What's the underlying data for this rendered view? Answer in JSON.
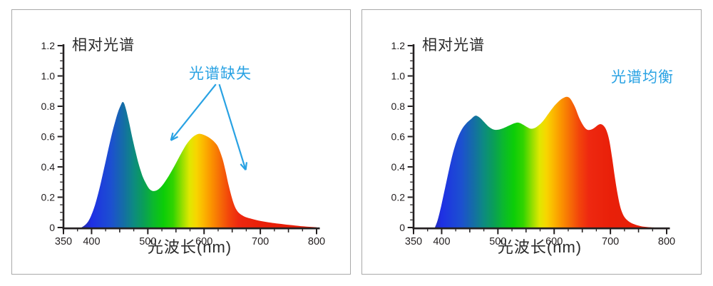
{
  "page": {
    "background": "#ffffff",
    "panel_border": "#a9a9a9",
    "axis_color": "#231f20",
    "text_color": "#2b2b2b",
    "annotation_color": "#29a2e3"
  },
  "spectrum_gradient": [
    {
      "nm": 380,
      "color": "#262a9e"
    },
    {
      "nm": 400,
      "color": "#1e30e4"
    },
    {
      "nm": 435,
      "color": "#1c50d0"
    },
    {
      "nm": 460,
      "color": "#13729f"
    },
    {
      "nm": 475,
      "color": "#0d8b80"
    },
    {
      "nm": 492,
      "color": "#0a9e58"
    },
    {
      "nm": 510,
      "color": "#0bb92c"
    },
    {
      "nm": 528,
      "color": "#0ccd08"
    },
    {
      "nm": 545,
      "color": "#31d400"
    },
    {
      "nm": 560,
      "color": "#8ede00"
    },
    {
      "nm": 574,
      "color": "#dfe800"
    },
    {
      "nm": 586,
      "color": "#f7d600"
    },
    {
      "nm": 598,
      "color": "#fbb900"
    },
    {
      "nm": 612,
      "color": "#fb9500"
    },
    {
      "nm": 628,
      "color": "#f66d06"
    },
    {
      "nm": 645,
      "color": "#f2430b"
    },
    {
      "nm": 662,
      "color": "#ee2810"
    },
    {
      "nm": 700,
      "color": "#e92009"
    },
    {
      "nm": 800,
      "color": "#e41e08"
    }
  ],
  "chart_data": [
    {
      "id": "left",
      "type": "area",
      "title": "相对光谱",
      "xlabel": "光波长(nm)",
      "ylabel": "",
      "xlim": [
        350,
        800
      ],
      "ylim": [
        0,
        1.2
      ],
      "grid": false,
      "x_ticks": [
        {
          "v": 350,
          "label": "350"
        },
        {
          "v": 400,
          "label": "400"
        },
        {
          "v": 450,
          "label": ""
        },
        {
          "v": 500,
          "label": "500"
        },
        {
          "v": 550,
          "label": ""
        },
        {
          "v": 600,
          "label": "600"
        },
        {
          "v": 650,
          "label": ""
        },
        {
          "v": 700,
          "label": "700"
        },
        {
          "v": 750,
          "label": ""
        },
        {
          "v": 800,
          "label": "800"
        }
      ],
      "x_minor_step": 25,
      "y_ticks": [
        {
          "v": 0,
          "label": "0"
        },
        {
          "v": 0.2,
          "label": "0.2"
        },
        {
          "v": 0.4,
          "label": "0.4"
        },
        {
          "v": 0.6,
          "label": "0.6"
        },
        {
          "v": 0.8,
          "label": "0.8"
        },
        {
          "v": 1.0,
          "label": "1.0"
        },
        {
          "v": 1.2,
          "label": "1.2"
        }
      ],
      "y_minor_step": 0.05,
      "annotation": {
        "text": "光谱缺失",
        "color": "#29a2e3",
        "arrows": [
          {
            "from": [
              621,
              0.945
            ],
            "to": [
              541,
              0.575
            ]
          },
          {
            "from": [
              627,
              0.945
            ],
            "to": [
              674,
              0.38
            ]
          }
        ]
      },
      "points": [
        [
          382,
          0
        ],
        [
          388,
          0.015
        ],
        [
          394,
          0.04
        ],
        [
          400,
          0.085
        ],
        [
          406,
          0.148
        ],
        [
          412,
          0.228
        ],
        [
          418,
          0.32
        ],
        [
          424,
          0.42
        ],
        [
          430,
          0.52
        ],
        [
          436,
          0.615
        ],
        [
          442,
          0.7
        ],
        [
          447,
          0.762
        ],
        [
          452,
          0.808
        ],
        [
          455,
          0.828
        ],
        [
          458,
          0.818
        ],
        [
          462,
          0.768
        ],
        [
          467,
          0.688
        ],
        [
          472,
          0.6
        ],
        [
          478,
          0.502
        ],
        [
          484,
          0.415
        ],
        [
          490,
          0.345
        ],
        [
          496,
          0.295
        ],
        [
          502,
          0.258
        ],
        [
          508,
          0.242
        ],
        [
          514,
          0.243
        ],
        [
          520,
          0.256
        ],
        [
          527,
          0.284
        ],
        [
          535,
          0.327
        ],
        [
          543,
          0.378
        ],
        [
          551,
          0.432
        ],
        [
          559,
          0.487
        ],
        [
          566,
          0.533
        ],
        [
          573,
          0.57
        ],
        [
          580,
          0.597
        ],
        [
          587,
          0.614
        ],
        [
          593,
          0.618
        ],
        [
          600,
          0.611
        ],
        [
          607,
          0.598
        ],
        [
          613,
          0.582
        ],
        [
          619,
          0.562
        ],
        [
          624,
          0.538
        ],
        [
          628,
          0.505
        ],
        [
          633,
          0.45
        ],
        [
          638,
          0.375
        ],
        [
          643,
          0.29
        ],
        [
          648,
          0.215
        ],
        [
          653,
          0.155
        ],
        [
          658,
          0.115
        ],
        [
          664,
          0.09
        ],
        [
          672,
          0.072
        ],
        [
          682,
          0.06
        ],
        [
          694,
          0.048
        ],
        [
          708,
          0.038
        ],
        [
          724,
          0.029
        ],
        [
          742,
          0.021
        ],
        [
          762,
          0.013
        ],
        [
          782,
          0.006
        ],
        [
          800,
          0.002
        ]
      ]
    },
    {
      "id": "right",
      "type": "area",
      "title": "相对光谱",
      "xlabel": "光波长(nm)",
      "ylabel": "",
      "xlim": [
        350,
        800
      ],
      "ylim": [
        0,
        1.2
      ],
      "grid": false,
      "x_ticks": [
        {
          "v": 350,
          "label": "350"
        },
        {
          "v": 400,
          "label": "400"
        },
        {
          "v": 450,
          "label": ""
        },
        {
          "v": 500,
          "label": "500"
        },
        {
          "v": 550,
          "label": ""
        },
        {
          "v": 600,
          "label": "600"
        },
        {
          "v": 650,
          "label": ""
        },
        {
          "v": 700,
          "label": "700"
        },
        {
          "v": 750,
          "label": ""
        },
        {
          "v": 800,
          "label": "800"
        }
      ],
      "x_minor_step": 25,
      "y_ticks": [
        {
          "v": 0,
          "label": "0"
        },
        {
          "v": 0.2,
          "label": "0.2"
        },
        {
          "v": 0.4,
          "label": "0.4"
        },
        {
          "v": 0.6,
          "label": "0.6"
        },
        {
          "v": 0.8,
          "label": "0.8"
        },
        {
          "v": 1.0,
          "label": "1.0"
        },
        {
          "v": 1.2,
          "label": "1.2"
        }
      ],
      "y_minor_step": 0.05,
      "annotation": {
        "text": "光谱均衡",
        "color": "#29a2e3",
        "arrows": []
      },
      "points": [
        [
          388,
          0
        ],
        [
          393,
          0.05
        ],
        [
          399,
          0.14
        ],
        [
          406,
          0.26
        ],
        [
          413,
          0.38
        ],
        [
          420,
          0.49
        ],
        [
          428,
          0.585
        ],
        [
          436,
          0.648
        ],
        [
          444,
          0.688
        ],
        [
          452,
          0.715
        ],
        [
          460,
          0.738
        ],
        [
          468,
          0.724
        ],
        [
          476,
          0.694
        ],
        [
          484,
          0.664
        ],
        [
          492,
          0.647
        ],
        [
          500,
          0.645
        ],
        [
          510,
          0.656
        ],
        [
          520,
          0.673
        ],
        [
          530,
          0.689
        ],
        [
          537,
          0.692
        ],
        [
          545,
          0.678
        ],
        [
          552,
          0.662
        ],
        [
          558,
          0.652
        ],
        [
          565,
          0.656
        ],
        [
          572,
          0.673
        ],
        [
          580,
          0.701
        ],
        [
          590,
          0.752
        ],
        [
          600,
          0.801
        ],
        [
          610,
          0.839
        ],
        [
          617,
          0.856
        ],
        [
          623,
          0.862
        ],
        [
          629,
          0.848
        ],
        [
          637,
          0.795
        ],
        [
          644,
          0.728
        ],
        [
          651,
          0.677
        ],
        [
          658,
          0.647
        ],
        [
          665,
          0.645
        ],
        [
          672,
          0.659
        ],
        [
          678,
          0.676
        ],
        [
          683,
          0.682
        ],
        [
          688,
          0.671
        ],
        [
          693,
          0.64
        ],
        [
          698,
          0.575
        ],
        [
          703,
          0.46
        ],
        [
          708,
          0.33
        ],
        [
          713,
          0.215
        ],
        [
          718,
          0.13
        ],
        [
          724,
          0.075
        ],
        [
          732,
          0.042
        ],
        [
          742,
          0.022
        ],
        [
          754,
          0.009
        ],
        [
          766,
          0.003
        ],
        [
          778,
          0
        ]
      ]
    }
  ]
}
